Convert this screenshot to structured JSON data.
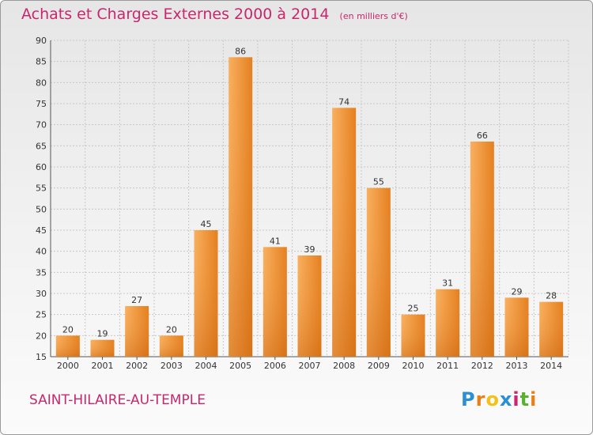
{
  "header": {
    "title": "Achats et Charges Externes 2000 à 2014",
    "subtitle": "(en milliers d'€)"
  },
  "footer": {
    "location": "SAINT-HILAIRE-AU-TEMPLE",
    "logo_text": "Proxiti"
  },
  "colors": {
    "accent": "#c8276e",
    "bar_light": "#f7a550",
    "bar_dark": "#d86e0f",
    "grid": "#c8c8c8"
  },
  "chart_data": {
    "type": "bar",
    "title": "Achats et Charges Externes 2000 à 2014",
    "subtitle": "(en milliers d'€)",
    "xlabel": "",
    "ylabel": "",
    "categories": [
      "2000",
      "2001",
      "2002",
      "2003",
      "2004",
      "2005",
      "2006",
      "2007",
      "2008",
      "2009",
      "2010",
      "2011",
      "2012",
      "2013",
      "2014"
    ],
    "values": [
      20,
      19,
      27,
      20,
      45,
      86,
      41,
      39,
      74,
      55,
      25,
      31,
      66,
      29,
      28
    ],
    "ylim": [
      15,
      90
    ],
    "yticks": [
      15,
      20,
      25,
      30,
      35,
      40,
      45,
      50,
      55,
      60,
      65,
      70,
      75,
      80,
      85,
      90
    ],
    "grid": true,
    "legend": "none"
  }
}
